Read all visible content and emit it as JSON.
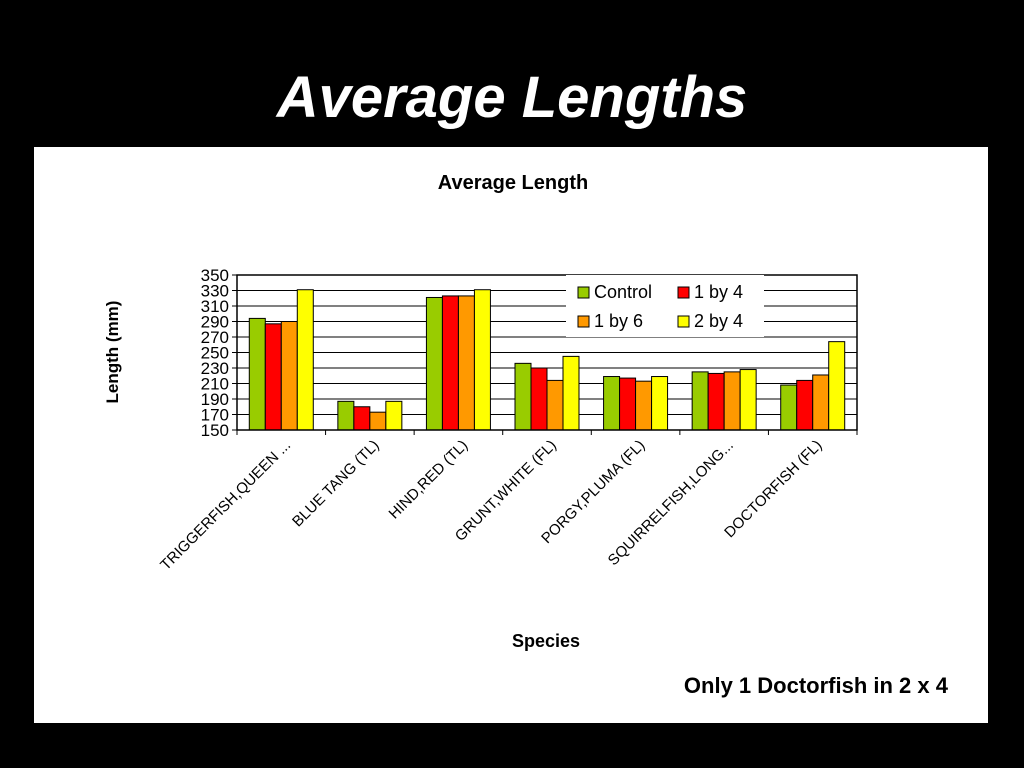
{
  "slide": {
    "title": "Average Lengths",
    "note": "Only 1 Doctorfish in 2 x 4"
  },
  "chart_data": {
    "type": "bar",
    "title": "Average Length",
    "xlabel": "Species",
    "ylabel": "Length (mm)",
    "ylim": [
      150,
      350
    ],
    "yticks": [
      150,
      170,
      190,
      210,
      230,
      250,
      270,
      290,
      310,
      330,
      350
    ],
    "grid": true,
    "legend_position": "top-right",
    "categories": [
      "TRIGGERFISH,QUEEN ...",
      "BLUE TANG (TL)",
      "HIND,RED (TL)",
      "GRUNT,WHITE (FL)",
      "PORGY,PLUMA (FL)",
      "SQUIRRELFISH,LONG...",
      "DOCTORFISH (FL)"
    ],
    "series": [
      {
        "name": "Control",
        "color": "#99cc00",
        "values": [
          294,
          187,
          321,
          236,
          219,
          225,
          208
        ]
      },
      {
        "name": "1 by 4",
        "color": "#ff0000",
        "values": [
          287,
          180,
          323,
          230,
          217,
          223,
          214
        ]
      },
      {
        "name": "1 by 6",
        "color": "#ff9900",
        "values": [
          290,
          173,
          323,
          214,
          213,
          225,
          221
        ]
      },
      {
        "name": "2 by 4",
        "color": "#ffff00",
        "values": [
          331,
          187,
          331,
          245,
          219,
          228,
          264
        ]
      }
    ]
  }
}
